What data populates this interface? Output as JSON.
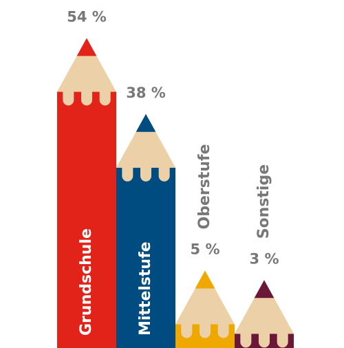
{
  "chart_data": {
    "type": "pencil-bar",
    "categories": [
      "Grundschule",
      "Mittelstufe",
      "Oberstufe",
      "Sonstige"
    ],
    "values": [
      54,
      38,
      5,
      3
    ],
    "value_labels": [
      "54 %",
      "38 %",
      "5 %",
      "3 %"
    ],
    "colors": [
      "#e2231a",
      "#004b7f",
      "#eea800",
      "#6b1838"
    ]
  }
}
